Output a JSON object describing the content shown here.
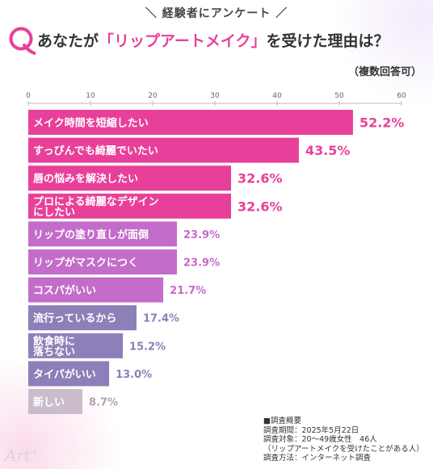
{
  "header": {
    "label": "＼ 経験者にアンケート ／"
  },
  "title": {
    "pre": "あなたが",
    "highlight": "「リップアートメイク」",
    "post": "を受けた理由は？"
  },
  "subtitle": "（複数回答可）",
  "chart_data": {
    "type": "bar",
    "orientation": "horizontal",
    "xlim": [
      0,
      60
    ],
    "xticks": [
      0,
      10,
      20,
      30,
      40,
      50,
      60
    ],
    "categories": [
      "メイク時間を短縮したい",
      "すっぴんでも綺麗でいたい",
      "唇の悩みを解決したい",
      "プロによる綺麗なデザインにしたい",
      "リップの塗り直しが面倒",
      "リップがマスクにつく",
      "コスパがいい",
      "流行っているから",
      "飲食時に落ちない",
      "タイパがいい",
      "新しい"
    ],
    "label_lines": [
      [
        "メイク時間を短縮したい"
      ],
      [
        "すっぴんでも綺麗でいたい"
      ],
      [
        "唇の悩みを解決したい"
      ],
      [
        "プロによる綺麗なデザイン",
        "にしたい"
      ],
      [
        "リップの塗り直しが面倒"
      ],
      [
        "リップがマスクにつく"
      ],
      [
        "コスパがいい"
      ],
      [
        "流行っているから"
      ],
      [
        "飲食時に",
        "落ちない"
      ],
      [
        "タイパがいい"
      ],
      [
        "新しい"
      ]
    ],
    "values": [
      52.2,
      43.5,
      32.6,
      32.6,
      23.9,
      23.9,
      21.7,
      17.4,
      15.2,
      13.0,
      8.7
    ],
    "value_labels": [
      "52.2%",
      "43.5%",
      "32.6%",
      "32.6%",
      "23.9%",
      "23.9%",
      "21.7%",
      "17.4%",
      "15.2%",
      "13.0%",
      "8.7%"
    ],
    "colors": [
      "#e8409a",
      "#e8409a",
      "#e8409a",
      "#e8409a",
      "#c46cc9",
      "#c46cc9",
      "#c46cc9",
      "#8d7fb8",
      "#8d7fb8",
      "#8d7fb8",
      "#cbbccb"
    ],
    "label_colors": [
      "#e8409a",
      "#e8409a",
      "#e8409a",
      "#e8409a",
      "#c46cc9",
      "#c46cc9",
      "#c46cc9",
      "#8d7fb8",
      "#8d7fb8",
      "#8d7fb8",
      "#b0a3b0"
    ]
  },
  "survey": {
    "heading": "■調査概要",
    "period": "調査期間：2025年5月22日",
    "target": "調査対象：20〜49歳女性　46人",
    "target_note": "（リップアートメイクを受けたことがある人）",
    "method": "調査方法：インターネット調査"
  },
  "logo": {
    "text": "Art",
    "suffix": "+"
  }
}
